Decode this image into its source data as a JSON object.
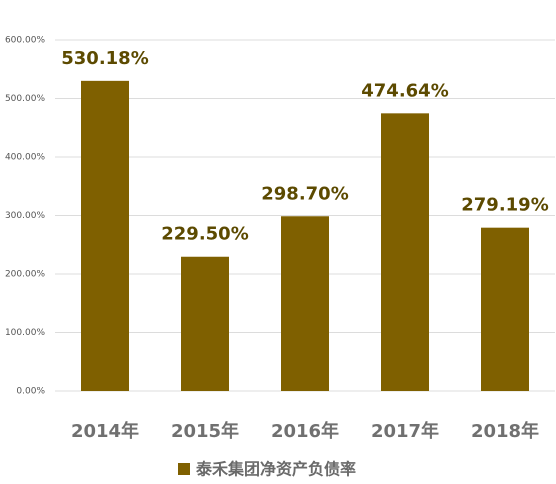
{
  "chart_data": {
    "type": "bar",
    "categories": [
      "2014年",
      "2015年",
      "2016年",
      "2017年",
      "2018年"
    ],
    "series": [
      {
        "name": "泰禾集团净资产负债率",
        "color": "#7f6000",
        "values": [
          530.18,
          229.5,
          298.7,
          474.64,
          279.19
        ],
        "value_labels": [
          "530.18%",
          "229.50%",
          "298.70%",
          "474.64%",
          "279.19%"
        ]
      }
    ],
    "ylim": [
      0,
      600
    ],
    "yticks": [
      {
        "value": 0,
        "label": "0.00%"
      },
      {
        "value": 100,
        "label": "100.00%"
      },
      {
        "value": 200,
        "label": "200.00%"
      },
      {
        "value": 300,
        "label": "300.00%"
      },
      {
        "value": 400,
        "label": "400.00%"
      },
      {
        "value": 500,
        "label": "500.00%"
      },
      {
        "value": 600,
        "label": "600.00%"
      }
    ],
    "grid": true,
    "legend": "bottom"
  }
}
